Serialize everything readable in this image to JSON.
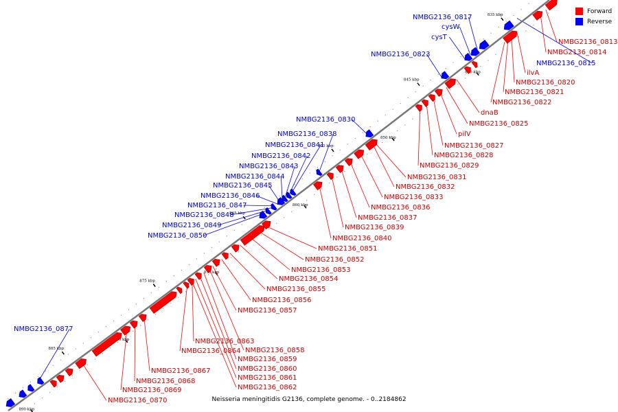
{
  "caption": "Neisseria meningitidis G2136, complete genome. - 0..2184862",
  "legend": [
    {
      "label": "Forward",
      "color": "#ff0000"
    },
    {
      "label": "Reverse",
      "color": "#0000ff"
    }
  ],
  "colors": {
    "forward": "#ff0000",
    "reverse": "#0000ff",
    "forward_label": "#cc0000",
    "reverse_label": "#0000cc",
    "backbone": "#777777"
  },
  "ticks": [
    "835 kbp",
    "840 kbp",
    "845 kbp",
    "850 kbp",
    "855 kbp",
    "860 kbp",
    "865 kbp",
    "870 kbp",
    "875 kbp",
    "880 kbp",
    "885 kbp",
    "890 kbp"
  ],
  "forward_labels": [
    "NMBG2136_0813",
    "NMBG2136_0814",
    "ilvA",
    "NMBG2136_0820",
    "NMBG2136_0821",
    "NMBG2136_0822",
    "dnaB",
    "NMBG2136_0825",
    "pilV",
    "NMBG2136_0827",
    "NMBG2136_0828",
    "NMBG2136_0829",
    "NMBG2136_0831",
    "NMBG2136_0832",
    "NMBG2136_0833",
    "NMBG2136_0836",
    "NMBG2136_0837",
    "NMBG2136_0839",
    "NMBG2136_0840",
    "NMBG2136_0851",
    "NMBG2136_0852",
    "NMBG2136_0853",
    "NMBG2136_0854",
    "NMBG2136_0855",
    "NMBG2136_0856",
    "NMBG2136_0857",
    "NMBG2136_0863",
    "NMBG2136_0864",
    "NMBG2136_0858",
    "NMBG2136_0859",
    "NMBG2136_0860",
    "NMBG2136_0861",
    "NMBG2136_0862",
    "NMBG2136_0867",
    "NMBG2136_0868",
    "NMBG2136_0869",
    "NMBG2136_0870"
  ],
  "reverse_labels": [
    "NMBG2136_0817",
    "cysW",
    "cysT",
    "NMBG2136_0815",
    "NMBG2136_0823",
    "NMBG2136_0830",
    "NMBG2136_0838",
    "NMBG2136_0841",
    "NMBG2136_0842",
    "NMBG2136_0843",
    "NMBG2136_0844",
    "NMBG2136_0845",
    "NMBG2136_0846",
    "NMBG2136_0847",
    "NMBG2136_0848",
    "NMBG2136_0849",
    "NMBG2136_0850",
    "NMBG2136_0877"
  ]
}
